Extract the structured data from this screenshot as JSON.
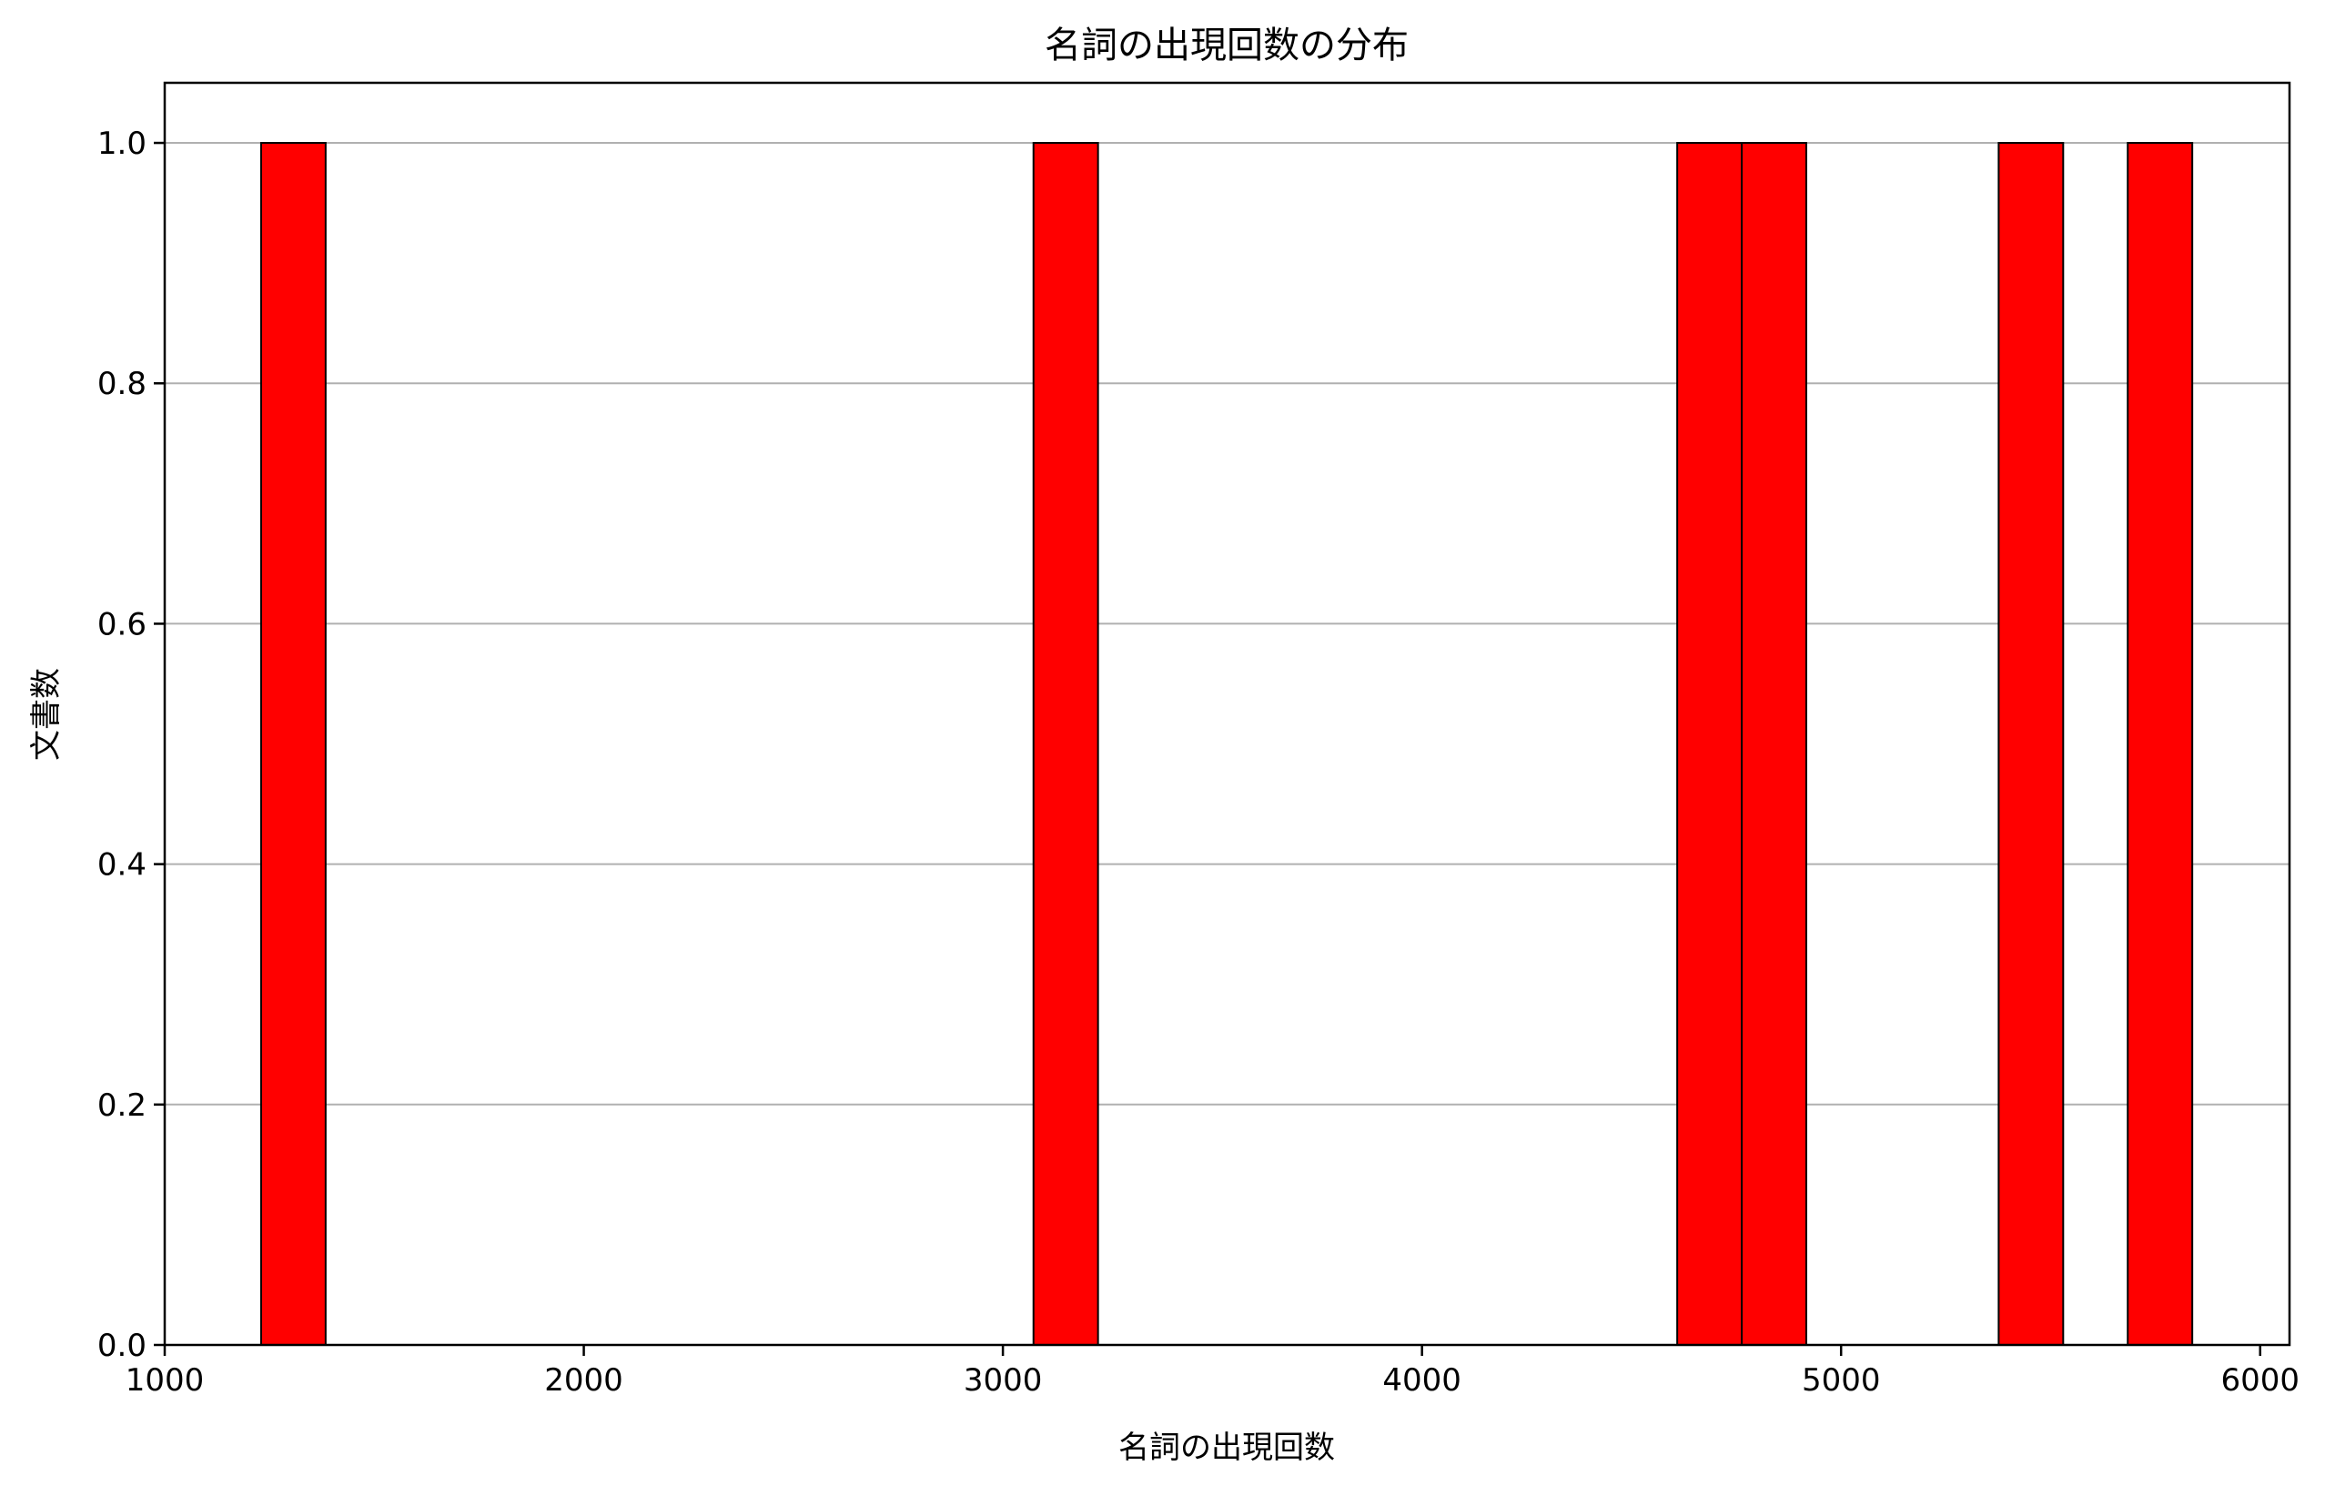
{
  "chart_data": {
    "type": "bar",
    "title": "名詞の出現回数の分布",
    "xlabel": "名詞の出現回数",
    "ylabel": "文書数",
    "xlim": [
      1000,
      6070
    ],
    "ylim": [
      0,
      1.05
    ],
    "xticks": [
      1000,
      2000,
      3000,
      4000,
      5000,
      6000
    ],
    "xtick_labels": [
      "1000",
      "2000",
      "3000",
      "4000",
      "5000",
      "6000"
    ],
    "yticks": [
      0.0,
      0.2,
      0.4,
      0.6,
      0.8,
      1.0
    ],
    "ytick_labels": [
      "0.0",
      "0.2",
      "0.4",
      "0.6",
      "0.8",
      "1.0"
    ],
    "grid": "y",
    "bar_color": "#ff0000",
    "edge_color": "#000000",
    "bins": [
      {
        "x0": 1230,
        "x1": 1384,
        "value": 1
      },
      {
        "x0": 3073,
        "x1": 3227,
        "value": 1
      },
      {
        "x0": 4609,
        "x1": 4763,
        "value": 1
      },
      {
        "x0": 4763,
        "x1": 4917,
        "value": 1
      },
      {
        "x0": 5376,
        "x1": 5530,
        "value": 1
      },
      {
        "x0": 5684,
        "x1": 5838,
        "value": 1
      }
    ]
  }
}
